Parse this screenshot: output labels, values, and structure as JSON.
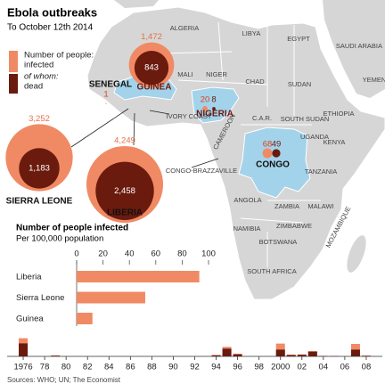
{
  "title": "Ebola outbreaks",
  "subtitle": "To October 12th 2014",
  "source": "Sources: WHO; UN; The Economist",
  "map": {
    "labels": [
      "ALGERIA",
      "LIBYA",
      "EGYPT",
      "SAUDI ARABIA",
      "YEMEN",
      "MALI",
      "NIGER",
      "CHAD",
      "SUDAN",
      "IVORY COAST",
      "C.A.R.",
      "SOUTH SUDAN",
      "ETHIOPIA",
      "UGANDA",
      "KENYA",
      "CAMEROON",
      "CONGO-BRAZZAVILLE",
      "TANZANIA",
      "ANGOLA",
      "ZAMBIA",
      "MALAWI",
      "MOZAMBIQUE",
      "NAMIBIA",
      "ZIMBABWE",
      "BOTSWANA",
      "SOUTH AFRICA"
    ]
  },
  "chart_data": [
    {
      "type": "bubble",
      "legend_title": "Number of people:",
      "legend_note": "of whom:",
      "categories": [
        "GUINEA",
        "SIERRA LEONE",
        "LIBERIA",
        "SENEGAL",
        "NIGERIA",
        "CONGO"
      ],
      "series": [
        {
          "name": "infected",
          "color": "#f08a65",
          "values": [
            1472,
            3252,
            4249,
            1,
            20,
            68
          ],
          "value_labels": [
            "1,472",
            "3,252",
            "4,249",
            "1",
            "20",
            "68"
          ]
        },
        {
          "name": "dead",
          "color": "#6b1a0e",
          "values": [
            843,
            1183,
            2458,
            null,
            8,
            49
          ],
          "value_labels": [
            "843",
            "1,183",
            "2,458",
            null,
            "8",
            "49"
          ]
        }
      ]
    },
    {
      "type": "bar",
      "orientation": "horizontal",
      "title": "Number of people infected",
      "subtitle": "Per 100,000 population",
      "categories": [
        "Liberia",
        "Sierra Leone",
        "Guinea"
      ],
      "values": [
        93,
        52,
        12
      ],
      "color": "#f08a65",
      "xlim": [
        0,
        100
      ],
      "xticks": [
        0,
        20,
        40,
        60,
        80,
        100
      ]
    },
    {
      "type": "bar",
      "x": [
        1976,
        1977,
        1979,
        1994,
        1995,
        1996,
        2000,
        2001,
        2002,
        2003,
        2004,
        2005,
        2007,
        2008
      ],
      "series": [
        {
          "color": "#f08a65",
          "values": [
            602,
            1,
            34,
            52,
            315,
            91,
            425,
            59,
            65,
            178,
            17,
            12,
            413,
            32
          ]
        },
        {
          "color": "#6b1a0e",
          "values": [
            431,
            1,
            22,
            31,
            254,
            66,
            224,
            44,
            53,
            157,
            7,
            10,
            224,
            15
          ]
        }
      ],
      "xlim": [
        1974.5,
        2009.5
      ],
      "ylim": [
        0,
        650
      ],
      "xticks": [
        {
          "value": 1976,
          "label": "1976"
        },
        {
          "value": 1978,
          "label": "78"
        },
        {
          "value": 1980,
          "label": "80"
        },
        {
          "value": 1982,
          "label": "82"
        },
        {
          "value": 1984,
          "label": "84"
        },
        {
          "value": 1986,
          "label": "86"
        },
        {
          "value": 1988,
          "label": "88"
        },
        {
          "value": 1990,
          "label": "90"
        },
        {
          "value": 1992,
          "label": "92"
        },
        {
          "value": 1994,
          "label": "94"
        },
        {
          "value": 1996,
          "label": "96"
        },
        {
          "value": 1998,
          "label": "98"
        },
        {
          "value": 2000,
          "label": "2000"
        },
        {
          "value": 2002,
          "label": "02"
        },
        {
          "value": 2004,
          "label": "04"
        },
        {
          "value": 2006,
          "label": "06"
        },
        {
          "value": 2008,
          "label": "08"
        }
      ]
    }
  ]
}
